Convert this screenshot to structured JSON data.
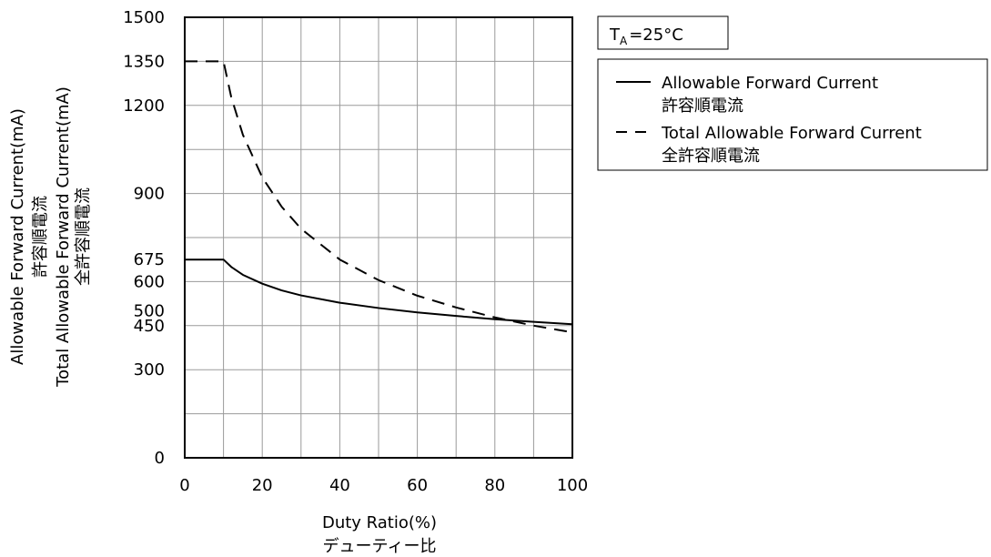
{
  "chart_data": {
    "type": "line",
    "xlabel": "Duty Ratio(%)",
    "xlabel_jp": "デューティー比",
    "ylabel_lines": [
      "Allowable Forward Current(mA)",
      "許容順電流",
      "Total Allowable Forward Current(mA)",
      "全許容順電流"
    ],
    "xlim": [
      0,
      100
    ],
    "ylim": [
      0,
      1500
    ],
    "x_ticks": [
      0,
      20,
      40,
      60,
      80,
      100
    ],
    "y_ticks": [
      0,
      300,
      450,
      500,
      600,
      675,
      900,
      1200,
      1350,
      1500
    ],
    "grid": true,
    "condition_label": {
      "main": "T",
      "sub": "A",
      "rest": "=25°C"
    },
    "legend_position": "top-right outside",
    "series": [
      {
        "name": "Allowable Forward Current",
        "name_jp": "許容順電流",
        "style": "solid",
        "x": [
          0,
          10,
          12,
          15,
          20,
          25,
          30,
          40,
          50,
          60,
          70,
          80,
          90,
          100
        ],
        "y": [
          675,
          675,
          650,
          623,
          593,
          570,
          553,
          528,
          510,
          495,
          483,
          472,
          463,
          455
        ]
      },
      {
        "name": "Total Allowable Forward Current",
        "name_jp": "全許容順電流",
        "style": "dashed",
        "x": [
          0,
          10,
          12,
          15,
          20,
          25,
          30,
          40,
          50,
          60,
          70,
          80,
          90,
          100
        ],
        "y": [
          1350,
          1350,
          1228,
          1100,
          955,
          855,
          780,
          675,
          605,
          552,
          512,
          478,
          450,
          427
        ]
      }
    ]
  }
}
